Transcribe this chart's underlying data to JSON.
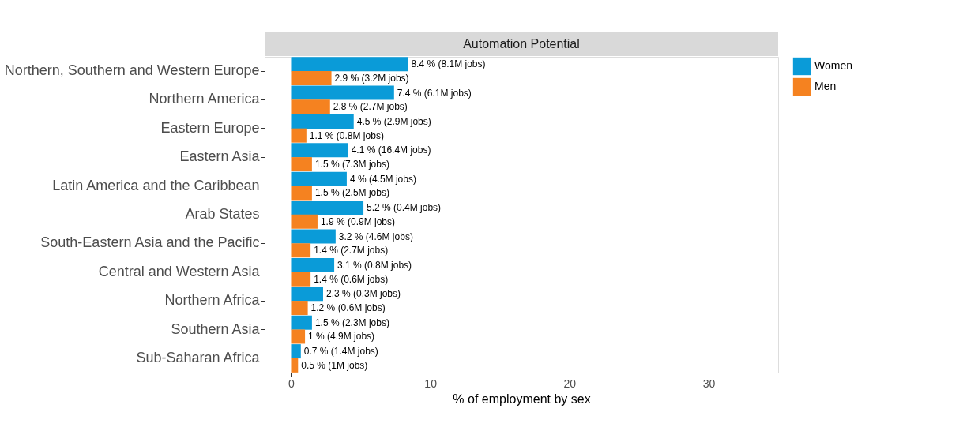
{
  "chart_data": {
    "type": "bar",
    "orientation": "horizontal",
    "title": "Automation Potential",
    "xlabel": "% of employment by sex",
    "categories": [
      "Northern, Southern and Western Europe",
      "Northern America",
      "Eastern Europe",
      "Eastern Asia",
      "Latin America and the Caribbean",
      "Arab States",
      "South-Eastern Asia and the Pacific",
      "Central and Western Asia",
      "Northern Africa",
      "Southern Asia",
      "Sub-Saharan Africa"
    ],
    "series": [
      {
        "name": "Women",
        "color": "#0a9bd8",
        "values": [
          8.4,
          7.4,
          4.5,
          4.1,
          4,
          5.2,
          3.2,
          3.1,
          2.3,
          1.5,
          0.7
        ],
        "value_labels": [
          "8.4 %  (8.1M jobs)",
          "7.4 %  (6.1M jobs)",
          "4.5 %  (2.9M jobs)",
          "4.1 %  (16.4M jobs)",
          "4 %     (4.5M jobs)",
          "5.2 %  (0.4M jobs)",
          "3.2 %  (4.6M jobs)",
          "3.1 %  (0.8M jobs)",
          "2.3 %  (0.3M jobs)",
          "1.5 %  (2.3M jobs)",
          "0.7 %  (1.4M jobs)"
        ]
      },
      {
        "name": "Men",
        "color": "#f58220",
        "values": [
          2.9,
          2.8,
          1.1,
          1.5,
          1.5,
          1.9,
          1.4,
          1.4,
          1.2,
          1,
          0.5
        ],
        "value_labels": [
          "2.9 %  (3.2M jobs)",
          "2.8 %  (2.7M jobs)",
          "1.1 %  (0.8M jobs)",
          "1.5 %  (7.3M jobs)",
          "1.5 %  (2.5M jobs)",
          "1.9 %  (0.9M jobs)",
          "1.4 %  (2.7M jobs)",
          "1.4 %  (0.6M jobs)",
          "1.2 %  (0.6M jobs)",
          "1 %     (4.9M jobs)",
          "0.5 %  (1M jobs)"
        ]
      }
    ],
    "xlim": [
      -1.9,
      35
    ],
    "xticks": [
      0,
      10,
      20,
      30
    ],
    "grid": "x",
    "legend": "right"
  }
}
